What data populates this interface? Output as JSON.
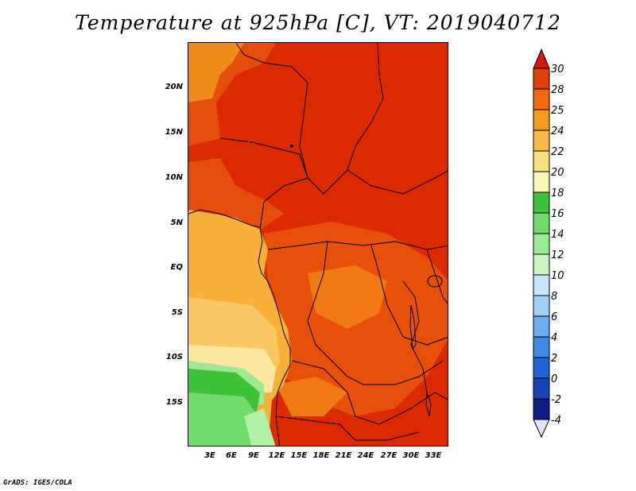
{
  "title": "Temperature at 925hPa [C], VT: 2019040712",
  "credit": "GrADS: IGES/COLA",
  "map": {
    "lat_labels": [
      "20N",
      "15N",
      "10N",
      "5N",
      "EQ",
      "5S",
      "10S",
      "15S"
    ],
    "lon_labels": [
      "3E",
      "6E",
      "9E",
      "12E",
      "15E",
      "18E",
      "21E",
      "24E",
      "27E",
      "30E",
      "33E"
    ]
  },
  "colorbar": {
    "labels": [
      "30",
      "28",
      "25",
      "24",
      "22",
      "20",
      "18",
      "16",
      "14",
      "12",
      "10",
      "8",
      "6",
      "4",
      "2",
      "0",
      "-2",
      "-4"
    ],
    "colors": [
      "#d42200",
      "#e03f07",
      "#ed6b0d",
      "#f59a1b",
      "#f7bb45",
      "#fadf80",
      "#fcf7b8",
      "#3fc23a",
      "#72dc6b",
      "#9aeb8f",
      "#c8f5c2",
      "#c9e6fb",
      "#9ecff6",
      "#69aff0",
      "#3d8ae6",
      "#2266d6",
      "#1845b4",
      "#0e1c80",
      "#0b0d5a"
    ],
    "top_arrow_color": "#d21a00",
    "bottom_arrow_color": "#e3e3f7"
  }
}
